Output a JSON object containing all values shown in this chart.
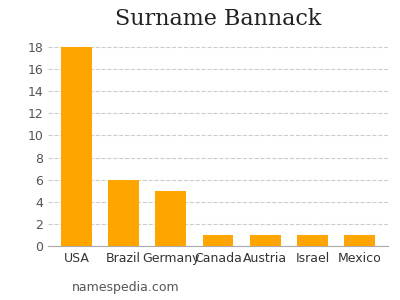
{
  "title": "Surname Bannack",
  "categories": [
    "USA",
    "Brazil",
    "Germany",
    "Canada",
    "Austria",
    "Israel",
    "Mexico"
  ],
  "values": [
    18,
    6,
    5,
    1,
    1,
    1,
    1
  ],
  "bar_color": "#FFA500",
  "background_color": "#ffffff",
  "ylim": [
    0,
    19
  ],
  "yticks": [
    0,
    2,
    4,
    6,
    8,
    10,
    12,
    14,
    16,
    18
  ],
  "grid_color": "#cccccc",
  "title_fontsize": 16,
  "tick_fontsize": 9,
  "watermark": "namespedia.com",
  "watermark_fontsize": 9
}
